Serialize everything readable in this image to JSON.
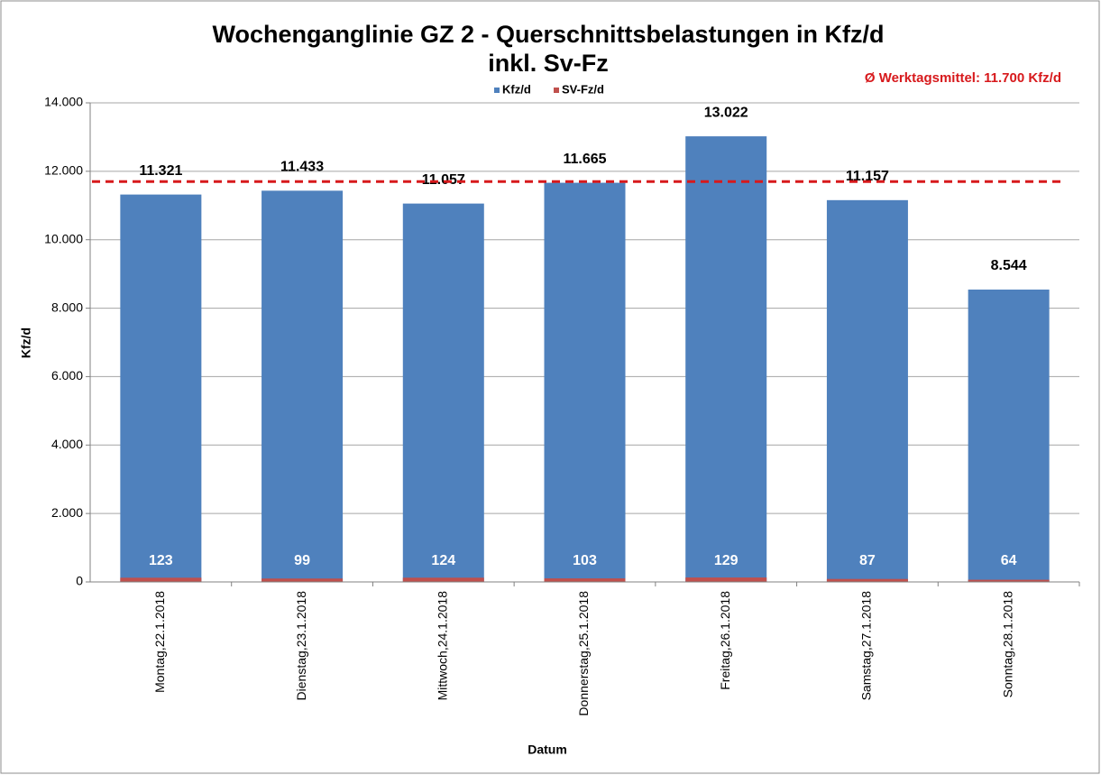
{
  "chart_data": {
    "type": "bar",
    "title": "Wochenganglinie GZ 2 - Querschnittsbelastungen in Kfz/d",
    "subtitle": "inkl. Sv-Fz",
    "x_label": "Datum",
    "y_label": "Kfz/d",
    "categories": [
      "Montag,22.1.2018",
      "Dienstag,23.1.2018",
      "Mittwoch,24.1.2018",
      "Donnerstag,25.1.2018",
      "Freitag,26.1.2018",
      "Samstag,27.1.2018",
      "Sonntag,28.1.2018"
    ],
    "series": [
      {
        "name": "Kfz/d",
        "color": "#4f81bd",
        "values": [
          11321,
          11433,
          11057,
          11665,
          13022,
          11157,
          8544
        ],
        "value_labels": [
          "11.321",
          "11.433",
          "11.057",
          "11.665",
          "13.022",
          "11.157",
          "8.544"
        ]
      },
      {
        "name": "SV-Fz/d",
        "color": "#c0504d",
        "values": [
          123,
          99,
          124,
          103,
          129,
          87,
          64
        ]
      }
    ],
    "reference_line": {
      "value": 11700,
      "label": "Ø Werktagsmittel: 11.700 Kfz/d",
      "color": "#d7191c"
    },
    "ylim": [
      0,
      14000
    ],
    "yticks": [
      0,
      {
        "value": 2000,
        "label": "2.000"
      },
      {
        "value": 4000,
        "label": "4.000"
      },
      {
        "value": 6000,
        "label": "6.000"
      },
      {
        "value": 8000,
        "label": "8.000"
      },
      {
        "value": 10000,
        "label": "10.000"
      },
      {
        "value": 12000,
        "label": "12.000"
      },
      {
        "value": 14000,
        "label": "14.000"
      }
    ],
    "grid": true
  }
}
